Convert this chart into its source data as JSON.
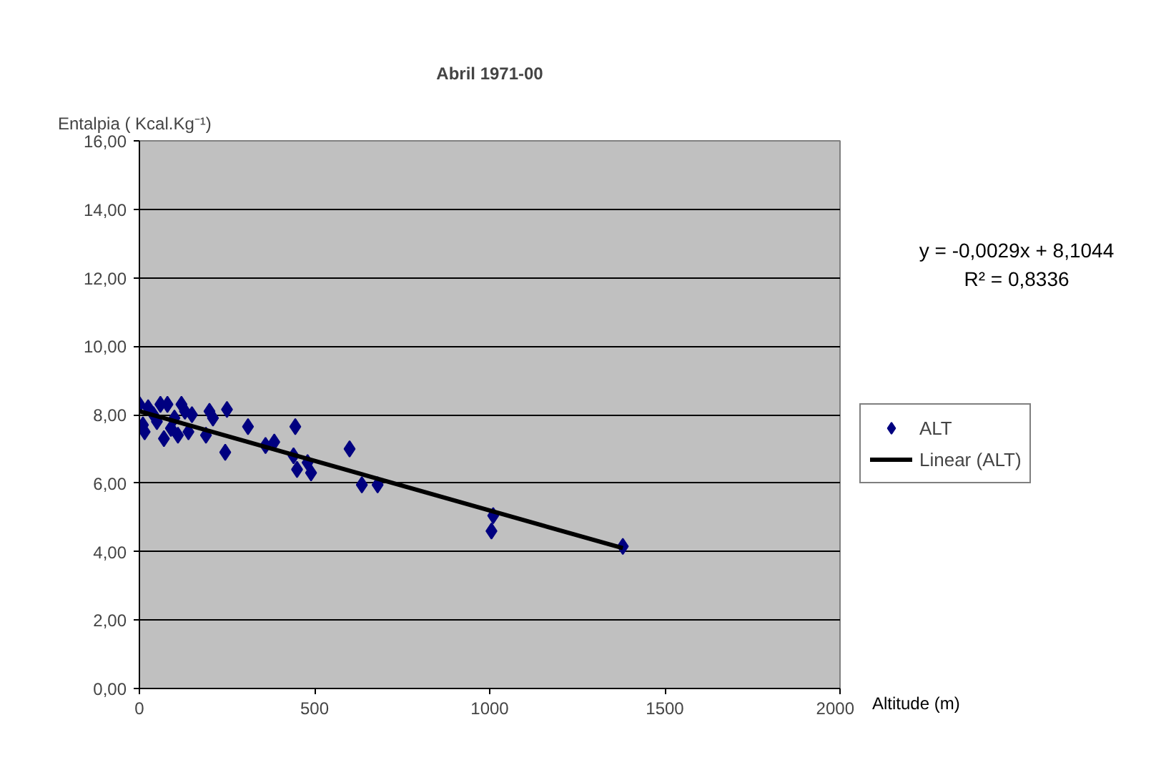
{
  "chart_data": {
    "type": "scatter",
    "title": "Abril 1971-00",
    "xlabel": "Altitude (m)",
    "ylabel": "Entalpia ( Kcal.Kg⁻¹)",
    "series": [
      {
        "name": "ALT",
        "color": "#000080",
        "marker": "diamond",
        "x": [
          0,
          10,
          15,
          25,
          40,
          50,
          60,
          70,
          80,
          90,
          100,
          110,
          120,
          130,
          140,
          150,
          190,
          200,
          210,
          245,
          250,
          310,
          360,
          385,
          440,
          445,
          450,
          480,
          490,
          600,
          635,
          680,
          1005,
          1010,
          1380
        ],
        "values": [
          8.3,
          7.7,
          7.5,
          8.2,
          8.0,
          7.8,
          8.3,
          7.3,
          8.3,
          7.6,
          7.9,
          7.4,
          8.3,
          8.1,
          7.5,
          8.0,
          7.4,
          8.1,
          7.9,
          6.9,
          8.15,
          7.65,
          7.1,
          7.2,
          6.8,
          7.65,
          6.4,
          6.6,
          6.3,
          7.0,
          5.95,
          5.95,
          4.6,
          5.05,
          4.15
        ]
      },
      {
        "name": "Linear (ALT)",
        "type": "line",
        "color": "#000000",
        "line_style": "solid",
        "marker": "none",
        "x": [
          0,
          1380
        ],
        "values": [
          8.1,
          4.1
        ]
      }
    ],
    "xlim": [
      0,
      2000
    ],
    "xticks": [
      0,
      500,
      1000,
      1500,
      2000
    ],
    "ylim": [
      0,
      16
    ],
    "yticks": [
      {
        "value": 0,
        "label": "0,00"
      },
      {
        "value": 2,
        "label": "2,00"
      },
      {
        "value": 4,
        "label": "4,00"
      },
      {
        "value": 6,
        "label": "6,00"
      },
      {
        "value": 8,
        "label": "8,00"
      },
      {
        "value": 10,
        "label": "10,00"
      },
      {
        "value": 12,
        "label": "12,00"
      },
      {
        "value": 14,
        "label": "14,00"
      },
      {
        "value": 16,
        "label": "16,00"
      }
    ],
    "grid": "y",
    "legend": "right",
    "annotations": [
      "y = -0,0029x + 8,1044",
      "R² = 0,8336"
    ]
  }
}
